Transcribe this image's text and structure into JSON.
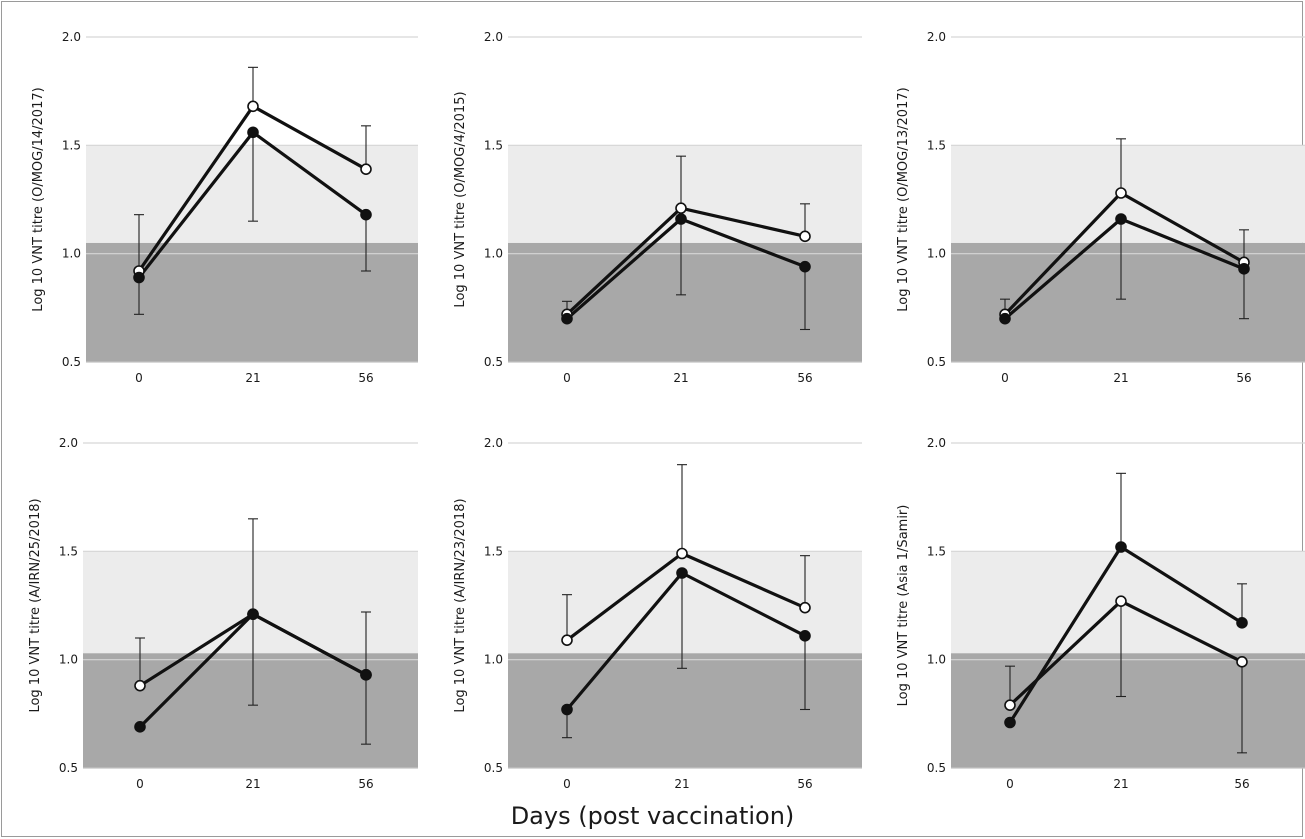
{
  "figure": {
    "x_axis_title": "Days (post vaccination)",
    "colors": {
      "band_low": "#a8a8a8",
      "band_mid": "#ececec",
      "gridline": "#d6d6d6",
      "line": "#111111",
      "open_marker_fill": "#ffffff",
      "filled_marker_fill": "#111111"
    }
  },
  "chart_data": [
    {
      "type": "line",
      "ylabel": "Log 10 VNT titre (O/MOG/14/2017)",
      "categories": [
        "0",
        "21",
        "56"
      ],
      "yticks": [
        0.5,
        1.0,
        1.5,
        2.0
      ],
      "ylim": [
        0.5,
        2.0
      ],
      "shaded_bands": [
        {
          "from": 0.5,
          "to": 1.05
        },
        {
          "from": 1.05,
          "to": 1.5
        }
      ],
      "series": [
        {
          "marker": "open",
          "values": [
            0.92,
            1.68,
            1.39
          ],
          "error_upper": [
            null,
            1.86,
            1.59
          ],
          "error_lower": [
            null,
            null,
            null
          ]
        },
        {
          "marker": "filled",
          "values": [
            0.89,
            1.56,
            1.18
          ],
          "error_upper": [
            1.18,
            null,
            null
          ],
          "error_lower": [
            0.72,
            1.15,
            0.92
          ]
        }
      ]
    },
    {
      "type": "line",
      "ylabel": "Log 10 VNT titre (O/MOG/4/2015)",
      "categories": [
        "0",
        "21",
        "56"
      ],
      "yticks": [
        0.5,
        1.0,
        1.5,
        2.0
      ],
      "ylim": [
        0.5,
        2.0
      ],
      "shaded_bands": [
        {
          "from": 0.5,
          "to": 1.05
        },
        {
          "from": 1.05,
          "to": 1.5
        }
      ],
      "series": [
        {
          "marker": "open",
          "values": [
            0.72,
            1.21,
            1.08
          ],
          "error_upper": [
            0.78,
            1.45,
            1.23
          ],
          "error_lower": [
            null,
            null,
            null
          ]
        },
        {
          "marker": "filled",
          "values": [
            0.7,
            1.16,
            0.94
          ],
          "error_upper": [
            null,
            null,
            null
          ],
          "error_lower": [
            null,
            0.81,
            0.65
          ]
        }
      ]
    },
    {
      "type": "line",
      "ylabel": "Log 10 VNT titre (O/MOG/13/2017)",
      "categories": [
        "0",
        "21",
        "56"
      ],
      "yticks": [
        0.5,
        1.0,
        1.5,
        2.0
      ],
      "ylim": [
        0.5,
        2.0
      ],
      "shaded_bands": [
        {
          "from": 0.5,
          "to": 1.05
        },
        {
          "from": 1.05,
          "to": 1.5
        }
      ],
      "series": [
        {
          "marker": "open",
          "values": [
            0.72,
            1.28,
            0.96
          ],
          "error_upper": [
            0.79,
            1.53,
            1.11
          ],
          "error_lower": [
            null,
            null,
            null
          ]
        },
        {
          "marker": "filled",
          "values": [
            0.7,
            1.16,
            0.93
          ],
          "error_upper": [
            null,
            null,
            null
          ],
          "error_lower": [
            null,
            0.79,
            0.7
          ]
        }
      ]
    },
    {
      "type": "line",
      "ylabel": "Log 10 VNT titre (A/IRN/25/2018)",
      "categories": [
        "0",
        "21",
        "56"
      ],
      "yticks": [
        0.5,
        1.0,
        1.5,
        2.0
      ],
      "ylim": [
        0.5,
        2.0
      ],
      "shaded_bands": [
        {
          "from": 0.5,
          "to": 1.03
        },
        {
          "from": 1.03,
          "to": 1.5
        }
      ],
      "series": [
        {
          "marker": "open",
          "values": [
            0.88,
            1.21,
            0.93
          ],
          "error_upper": [
            1.1,
            1.65,
            1.22
          ],
          "error_lower": [
            null,
            null,
            null
          ]
        },
        {
          "marker": "filled",
          "values": [
            0.69,
            1.21,
            0.93
          ],
          "error_upper": [
            null,
            null,
            null
          ],
          "error_lower": [
            null,
            0.79,
            0.61
          ]
        }
      ]
    },
    {
      "type": "line",
      "ylabel": "Log 10 VNT titre (A/IRN/23/2018)",
      "categories": [
        "0",
        "21",
        "56"
      ],
      "yticks": [
        0.5,
        1.0,
        1.5,
        2.0
      ],
      "ylim": [
        0.5,
        2.0
      ],
      "shaded_bands": [
        {
          "from": 0.5,
          "to": 1.03
        },
        {
          "from": 1.03,
          "to": 1.5
        }
      ],
      "series": [
        {
          "marker": "open",
          "values": [
            1.09,
            1.49,
            1.24
          ],
          "error_upper": [
            1.3,
            1.9,
            1.48
          ],
          "error_lower": [
            null,
            null,
            null
          ]
        },
        {
          "marker": "filled",
          "values": [
            0.77,
            1.4,
            1.11
          ],
          "error_upper": [
            null,
            null,
            null
          ],
          "error_lower": [
            0.64,
            0.96,
            0.77
          ]
        }
      ]
    },
    {
      "type": "line",
      "ylabel": "Log 10 VNT titre (Asia 1/Samir)",
      "categories": [
        "0",
        "21",
        "56"
      ],
      "yticks": [
        0.5,
        1.0,
        1.5,
        2.0
      ],
      "ylim": [
        0.5,
        2.0
      ],
      "shaded_bands": [
        {
          "from": 0.5,
          "to": 1.03
        },
        {
          "from": 1.03,
          "to": 1.5
        }
      ],
      "series": [
        {
          "marker": "open",
          "values": [
            0.79,
            1.27,
            0.99
          ],
          "error_upper": [
            0.97,
            null,
            null
          ],
          "error_lower": [
            null,
            0.83,
            0.57
          ]
        },
        {
          "marker": "filled",
          "values": [
            0.71,
            1.52,
            1.17
          ],
          "error_upper": [
            null,
            1.86,
            1.35
          ],
          "error_lower": [
            null,
            null,
            null
          ]
        }
      ]
    }
  ]
}
